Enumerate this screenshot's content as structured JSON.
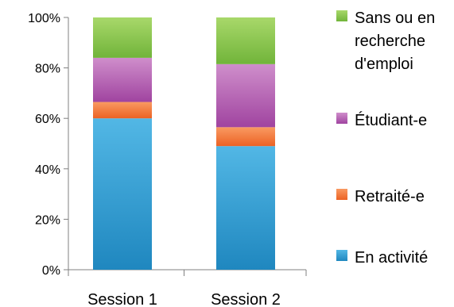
{
  "chart_data": {
    "type": "bar",
    "stacked": true,
    "percent_stacked": true,
    "categories": [
      "Session 1",
      "Session 2"
    ],
    "series": [
      {
        "name": "En activité",
        "values": [
          60,
          49
        ],
        "color_top": "#52b7e5",
        "color_bottom": "#1f87bf"
      },
      {
        "name": "Retraité-e",
        "values": [
          6.5,
          7.5
        ],
        "color_top": "#f99a62",
        "color_bottom": "#ec6224"
      },
      {
        "name": "Étudiant-e",
        "values": [
          17.5,
          25
        ],
        "color_top": "#cf8ecb",
        "color_bottom": "#a044a0"
      },
      {
        "name": "Sans ou en recherche d'emploi",
        "values": [
          16,
          18.5
        ],
        "color_top": "#a8d86a",
        "color_bottom": "#71b43a"
      }
    ],
    "ylim": [
      0,
      100
    ],
    "y_ticks": [
      "0%",
      "20%",
      "40%",
      "60%",
      "80%",
      "100%"
    ],
    "y_tick_values": [
      0,
      20,
      40,
      60,
      80,
      100
    ],
    "legend": {
      "position": "right",
      "label_lines": [
        [
          "Sans ou en",
          "recherche",
          "d'emploi"
        ],
        [
          "Étudiant-e"
        ],
        [
          "Retraité-e"
        ],
        [
          "En activité"
        ]
      ]
    },
    "grid": false,
    "title": "",
    "xlabel": "",
    "ylabel": ""
  }
}
